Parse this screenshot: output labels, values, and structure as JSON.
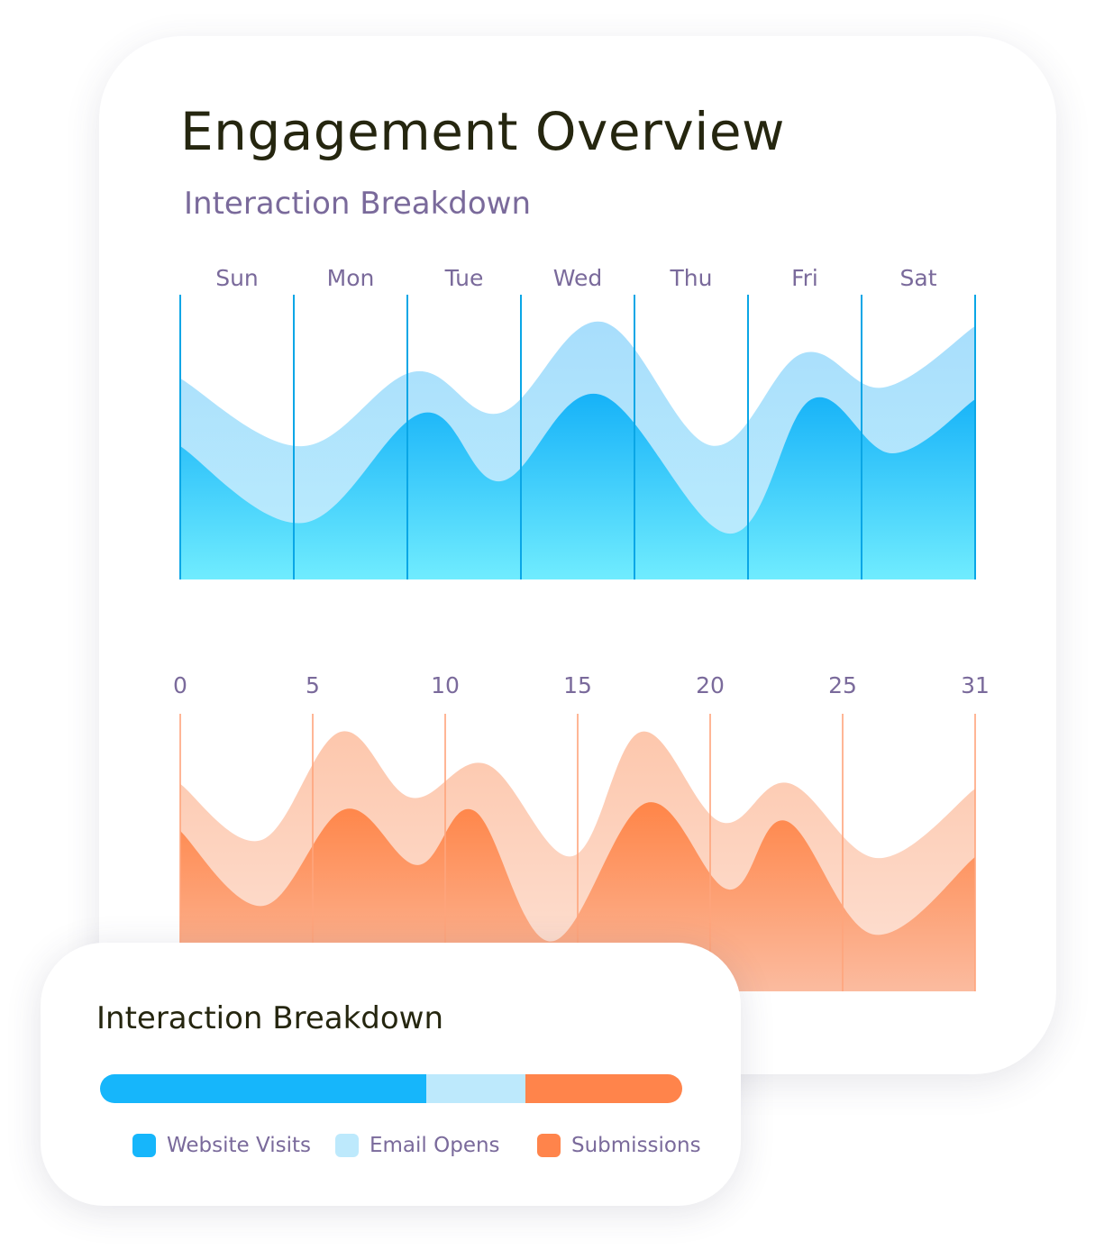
{
  "header": {
    "title": "Engagement Overview",
    "subtitle": "Interaction Breakdown"
  },
  "colors": {
    "blue": "#16b6fb",
    "light_blue": "#bde9fc",
    "orange": "#ff844b",
    "peach": "#fdc8ae"
  },
  "chart_data": [
    {
      "type": "area",
      "x_ticks": [
        "Sun",
        "Mon",
        "Tue",
        "Wed",
        "Thu",
        "Fri",
        "Sat"
      ],
      "xlim": [
        0,
        7
      ],
      "ylim": [
        0,
        100
      ],
      "grid": "vertical",
      "series": [
        {
          "points": [
            [
              0,
              70.6
            ],
            [
              1.07,
              46.8
            ],
            [
              2.06,
              73
            ],
            [
              2.82,
              58.5
            ],
            [
              3.71,
              90.5
            ],
            [
              4.68,
              47
            ],
            [
              5.48,
              79.4
            ],
            [
              6.19,
              67.4
            ],
            [
              7,
              89
            ]
          ],
          "color": "#a6defc"
        },
        {
          "points": [
            [
              0,
              46.8
            ],
            [
              1.09,
              19.9
            ],
            [
              2.14,
              58.5
            ],
            [
              2.82,
              34.5
            ],
            [
              3.69,
              65
            ],
            [
              4.84,
              16.1
            ],
            [
              5.56,
              63.3
            ],
            [
              6.27,
              44.3
            ],
            [
              7,
              63.3
            ]
          ],
          "color": "#1ab4f8"
        }
      ]
    },
    {
      "type": "area",
      "x_ticks": [
        "0",
        "5",
        "10",
        "15",
        "20",
        "25",
        "31"
      ],
      "xlim": [
        0,
        31
      ],
      "ylim": [
        0,
        100
      ],
      "grid": "vertical",
      "series": [
        {
          "points": [
            [
              0,
              74.7
            ],
            [
              3.06,
              54.5
            ],
            [
              6.05,
              93.5
            ],
            [
              8.71,
              69.8
            ],
            [
              11.56,
              81.8
            ],
            [
              14.8,
              48.7
            ],
            [
              17.4,
              93.5
            ],
            [
              20.4,
              61
            ],
            [
              22.96,
              75
            ],
            [
              26.6,
              48
            ],
            [
              31,
              73
            ]
          ],
          "color": "#fdc8ae"
        },
        {
          "points": [
            [
              0,
              57.8
            ],
            [
              3.13,
              30.8
            ],
            [
              6.22,
              65.6
            ],
            [
              8.95,
              45.5
            ],
            [
              11.1,
              65
            ],
            [
              14.0,
              18
            ],
            [
              17.6,
              67.9
            ],
            [
              20.7,
              36.7
            ],
            [
              22.86,
              61.4
            ],
            [
              26.4,
              20.5
            ],
            [
              31,
              48.4
            ]
          ],
          "color": "#ff8a50"
        }
      ]
    }
  ],
  "legend": {
    "title": "Interaction Breakdown",
    "items": [
      {
        "label": "Website Visits",
        "percent": 56,
        "color": "#16b6fb"
      },
      {
        "label": "Email Opens",
        "percent": 17,
        "color": "#bde9fc"
      },
      {
        "label": "Submissions",
        "percent": 27,
        "color": "#ff844b"
      }
    ]
  }
}
